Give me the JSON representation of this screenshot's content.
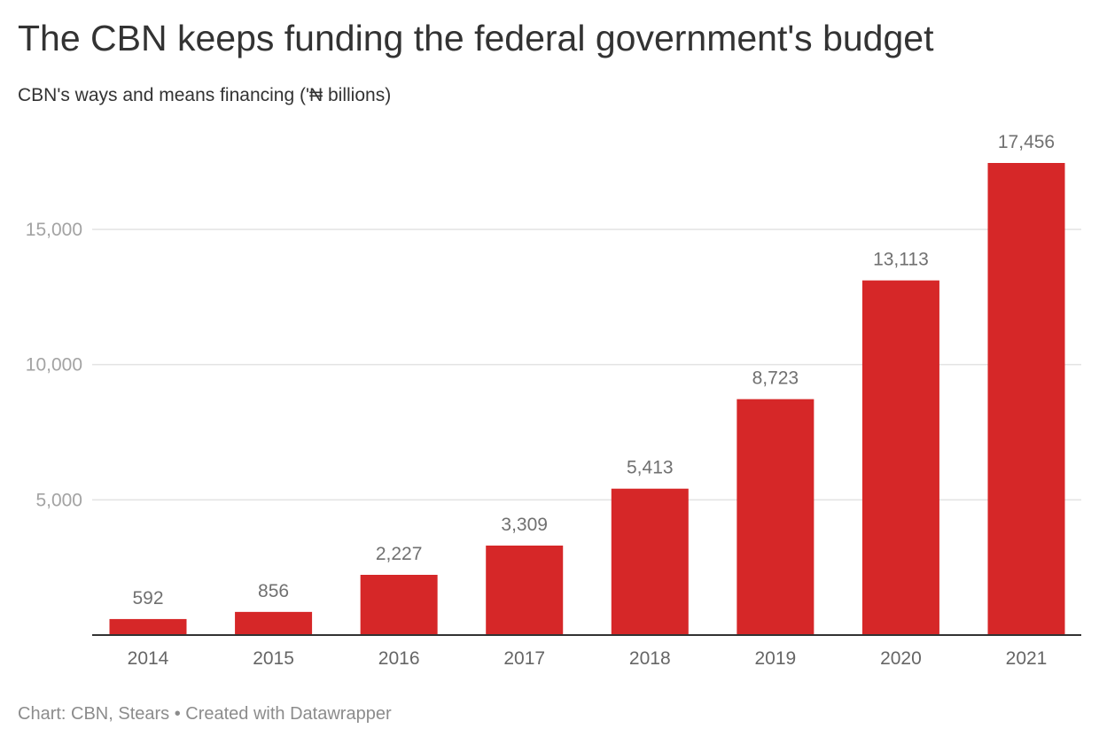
{
  "header": {
    "title": "The CBN keeps funding the federal government's budget",
    "subtitle": "CBN's ways and means financing ('₦ billions)"
  },
  "footer": {
    "source": "Chart: CBN, Stears • Created with Datawrapper"
  },
  "colors": {
    "bar": "#d62728",
    "grid": "#e3e3e3",
    "baseline": "#333333"
  },
  "chart_data": {
    "type": "bar",
    "title": "The CBN keeps funding the federal government's budget",
    "subtitle": "CBN's ways and means financing ('₦ billions)",
    "xlabel": "",
    "ylabel": "",
    "categories": [
      "2014",
      "2015",
      "2016",
      "2017",
      "2018",
      "2019",
      "2020",
      "2021"
    ],
    "values": [
      592,
      856,
      2227,
      3309,
      5413,
      8723,
      13113,
      17456
    ],
    "value_labels": [
      "592",
      "856",
      "2,227",
      "3,309",
      "5,413",
      "8,723",
      "13,113",
      "17,456"
    ],
    "yticks": [
      5000,
      10000,
      15000
    ],
    "ytick_labels": [
      "5,000",
      "10,000",
      "15,000"
    ],
    "ylim": [
      0,
      17456
    ],
    "grid": true,
    "legend": "none"
  }
}
